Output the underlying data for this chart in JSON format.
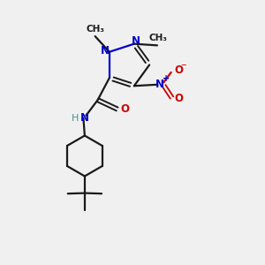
{
  "bg_color": "#f0f0f0",
  "bond_color": "#1a1a1a",
  "N_color": "#0000cc",
  "O_color": "#cc0000",
  "teal_color": "#4a9090",
  "line_width": 1.6,
  "fig_width": 3.0,
  "fig_height": 3.0,
  "dpi": 100,
  "xlim": [
    0,
    10
  ],
  "ylim": [
    0,
    10
  ]
}
